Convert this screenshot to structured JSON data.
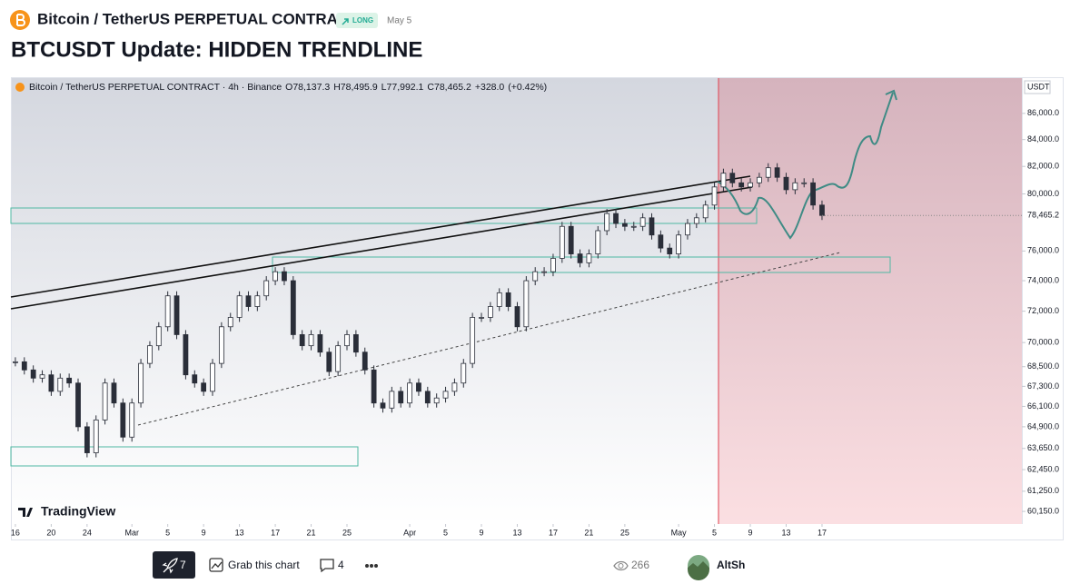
{
  "header": {
    "symbol": "Bitcoin / TetherUS PERPETUAL CONTRACT",
    "badge": "LONG",
    "date": "May 5",
    "title": "BTCUSDT Update: HIDDEN TRENDLINE"
  },
  "chart_data": {
    "type": "candlestick",
    "legend_text": "Bitcoin / TetherUS PERPETUAL CONTRACT · 4h · Binance",
    "legend_values": [
      {
        "value": 78137.3,
        "label": "O78,137.3"
      },
      {
        "value": 78495.9,
        "label": "H78,495.9"
      },
      {
        "value": 77992.1,
        "label": "L77,992.1"
      },
      {
        "value": 78465.2,
        "label": "C78,465.2"
      },
      {
        "value": 328.0,
        "label": "+328.0"
      },
      {
        "value": 0.42,
        "label": "(+0.42%)"
      }
    ],
    "unit": "USDT",
    "brand": "TradingView",
    "log_scale": true,
    "color": "#2a2e39",
    "ylim": [
      59470,
      88840
    ],
    "xlim": [
      -0.5,
      112.3
    ],
    "yticks": [
      {
        "value": 86000,
        "label": "86,000.0"
      },
      {
        "value": 84000,
        "label": "84,000.0"
      },
      {
        "value": 82000,
        "label": "82,000.0"
      },
      {
        "value": 80000,
        "label": "80,000.0"
      },
      {
        "value": 76000,
        "label": "76,000.0"
      },
      {
        "value": 74000,
        "label": "74,000.0"
      },
      {
        "value": 72000,
        "label": "72,000.0"
      },
      {
        "value": 70000,
        "label": "70,000.0"
      },
      {
        "value": 68500,
        "label": "68,500.0"
      },
      {
        "value": 67300,
        "label": "67,300.0"
      },
      {
        "value": 66100,
        "label": "66,100.0"
      },
      {
        "value": 64900,
        "label": "64,900.0"
      },
      {
        "value": 63650,
        "label": "63,650.0"
      },
      {
        "value": 62450,
        "label": "62,450.0"
      },
      {
        "value": 61250,
        "label": "61,250.0"
      },
      {
        "value": 60150,
        "label": "60,150.0"
      }
    ],
    "last_price": {
      "value": 78465.2,
      "label": "78,465.2"
    },
    "xticks": [
      {
        "value": 0,
        "label": "16"
      },
      {
        "value": 4,
        "label": "20"
      },
      {
        "value": 8,
        "label": "24"
      },
      {
        "value": 13,
        "label": "Mar"
      },
      {
        "value": 17,
        "label": "5"
      },
      {
        "value": 21,
        "label": "9"
      },
      {
        "value": 25,
        "label": "13"
      },
      {
        "value": 29,
        "label": "17"
      },
      {
        "value": 33,
        "label": "21"
      },
      {
        "value": 37,
        "label": "25"
      },
      {
        "value": 44,
        "label": "Apr"
      },
      {
        "value": 48,
        "label": "5"
      },
      {
        "value": 52,
        "label": "9"
      },
      {
        "value": 56,
        "label": "13"
      },
      {
        "value": 60,
        "label": "17"
      },
      {
        "value": 64,
        "label": "21"
      },
      {
        "value": 68,
        "label": "25"
      },
      {
        "value": 74,
        "label": "May"
      },
      {
        "value": 78,
        "label": "5"
      },
      {
        "value": 82,
        "label": "9"
      },
      {
        "value": 86,
        "label": "13"
      },
      {
        "value": 90,
        "label": "17"
      }
    ],
    "x": [
      0,
      1,
      2,
      3,
      4,
      5,
      6,
      7,
      8,
      9,
      10,
      11,
      12,
      13,
      14,
      15,
      16,
      17,
      18,
      19,
      20,
      21,
      22,
      23,
      24,
      25,
      26,
      27,
      28,
      29,
      30,
      31,
      32,
      33,
      34,
      35,
      36,
      37,
      38,
      39,
      40,
      41,
      42,
      43,
      44,
      45,
      46,
      47,
      48,
      49,
      50,
      51,
      52,
      53,
      54,
      55,
      56,
      57,
      58,
      59,
      60,
      61,
      62,
      63,
      64,
      65,
      66,
      67,
      68,
      69,
      70,
      71,
      72,
      73,
      74,
      75,
      76,
      77,
      78,
      79,
      80,
      81,
      82,
      83,
      84,
      85,
      86,
      87,
      88,
      89,
      90
    ],
    "values": [
      68800,
      68300,
      67800,
      68000,
      67000,
      67800,
      67500,
      64900,
      63400,
      65300,
      67500,
      66300,
      64300,
      66300,
      68700,
      69800,
      71000,
      73000,
      70500,
      68000,
      67500,
      67000,
      68700,
      71000,
      71600,
      73000,
      72300,
      73000,
      74000,
      74600,
      74000,
      70500,
      69800,
      70500,
      69400,
      68200,
      69800,
      70500,
      69400,
      68300,
      66300,
      66000,
      67000,
      66300,
      67500,
      67000,
      66300,
      66600,
      67000,
      67500,
      68700,
      71600,
      71600,
      72300,
      73200,
      72300,
      71000,
      74000,
      74600,
      74600,
      75500,
      77700,
      75800,
      75200,
      75800,
      77400,
      78600,
      77900,
      77700,
      77700,
      78300,
      77100,
      76200,
      75800,
      77100,
      77900,
      78300,
      79200,
      80500,
      81500,
      80800,
      80500,
      80800,
      81200,
      81900,
      81200,
      80300,
      80800,
      80800,
      79200,
      78465.2
    ]
  },
  "footer": {
    "boosts": 7,
    "grab": "Grab this chart",
    "comments": 4,
    "views": 266,
    "author": "AltSh"
  }
}
